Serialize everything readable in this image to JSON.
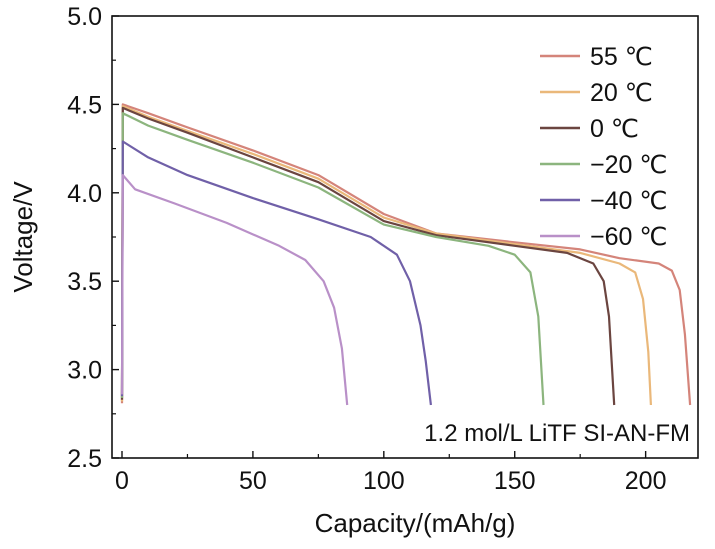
{
  "chart_data": {
    "type": "line",
    "title": "",
    "xlabel": "Capacity/(mAh/g)",
    "ylabel": "Voltage/V",
    "xlim": [
      0,
      220
    ],
    "ylim": [
      2.5,
      5.0
    ],
    "x_ticks": [
      0,
      50,
      100,
      150,
      200
    ],
    "y_ticks": [
      2.5,
      3.0,
      3.5,
      4.0,
      4.5,
      5.0
    ],
    "x_tick_labels": [
      "0",
      "50",
      "100",
      "150",
      "200"
    ],
    "y_tick_labels": [
      "2.5",
      "3.0",
      "3.5",
      "4.0",
      "4.5",
      "5.0"
    ],
    "grid": false,
    "legend_position": "top-right",
    "annotation": "1.2 mol/L LiTF SI-AN-FM",
    "series": [
      {
        "name": "55 ℃",
        "color": "#d4847a",
        "points": [
          [
            0,
            2.81
          ],
          [
            0.3,
            4.5
          ],
          [
            10,
            4.45
          ],
          [
            25,
            4.37
          ],
          [
            50,
            4.24
          ],
          [
            75,
            4.1
          ],
          [
            100,
            3.88
          ],
          [
            120,
            3.77
          ],
          [
            150,
            3.72
          ],
          [
            175,
            3.68
          ],
          [
            190,
            3.63
          ],
          [
            205,
            3.6
          ],
          [
            210,
            3.56
          ],
          [
            213,
            3.45
          ],
          [
            215,
            3.2
          ],
          [
            217,
            2.8
          ]
        ]
      },
      {
        "name": "20 ℃",
        "color": "#eab87a",
        "points": [
          [
            0,
            2.82
          ],
          [
            0.3,
            4.49
          ],
          [
            10,
            4.43
          ],
          [
            25,
            4.35
          ],
          [
            50,
            4.22
          ],
          [
            75,
            4.08
          ],
          [
            100,
            3.86
          ],
          [
            120,
            3.77
          ],
          [
            150,
            3.71
          ],
          [
            175,
            3.66
          ],
          [
            190,
            3.6
          ],
          [
            196,
            3.55
          ],
          [
            199,
            3.4
          ],
          [
            201,
            3.1
          ],
          [
            202,
            2.8
          ]
        ]
      },
      {
        "name": "0 ℃",
        "color": "#6b4540",
        "points": [
          [
            0,
            2.83
          ],
          [
            0.3,
            4.48
          ],
          [
            10,
            4.42
          ],
          [
            25,
            4.34
          ],
          [
            50,
            4.2
          ],
          [
            75,
            4.06
          ],
          [
            100,
            3.84
          ],
          [
            120,
            3.76
          ],
          [
            150,
            3.7
          ],
          [
            170,
            3.66
          ],
          [
            180,
            3.6
          ],
          [
            184,
            3.5
          ],
          [
            186,
            3.3
          ],
          [
            187,
            3.05
          ],
          [
            188,
            2.8
          ]
        ]
      },
      {
        "name": "−20 ℃",
        "color": "#8cb57e",
        "points": [
          [
            0,
            2.84
          ],
          [
            0.3,
            4.45
          ],
          [
            10,
            4.38
          ],
          [
            25,
            4.3
          ],
          [
            50,
            4.17
          ],
          [
            75,
            4.03
          ],
          [
            100,
            3.82
          ],
          [
            120,
            3.75
          ],
          [
            140,
            3.7
          ],
          [
            150,
            3.65
          ],
          [
            156,
            3.55
          ],
          [
            159,
            3.3
          ],
          [
            160,
            3.05
          ],
          [
            161,
            2.8
          ]
        ]
      },
      {
        "name": "−40 ℃",
        "color": "#7060a8",
        "points": [
          [
            0,
            2.85
          ],
          [
            0.3,
            4.29
          ],
          [
            10,
            4.2
          ],
          [
            25,
            4.1
          ],
          [
            50,
            3.97
          ],
          [
            75,
            3.85
          ],
          [
            95,
            3.75
          ],
          [
            105,
            3.65
          ],
          [
            110,
            3.5
          ],
          [
            114,
            3.25
          ],
          [
            116,
            3.05
          ],
          [
            118,
            2.8
          ]
        ]
      },
      {
        "name": "−60 ℃",
        "color": "#b990c8",
        "points": [
          [
            0,
            2.86
          ],
          [
            0.3,
            4.1
          ],
          [
            5,
            4.02
          ],
          [
            20,
            3.94
          ],
          [
            40,
            3.83
          ],
          [
            60,
            3.7
          ],
          [
            70,
            3.62
          ],
          [
            77,
            3.5
          ],
          [
            81,
            3.35
          ],
          [
            84,
            3.12
          ],
          [
            86,
            2.8
          ]
        ]
      }
    ]
  }
}
